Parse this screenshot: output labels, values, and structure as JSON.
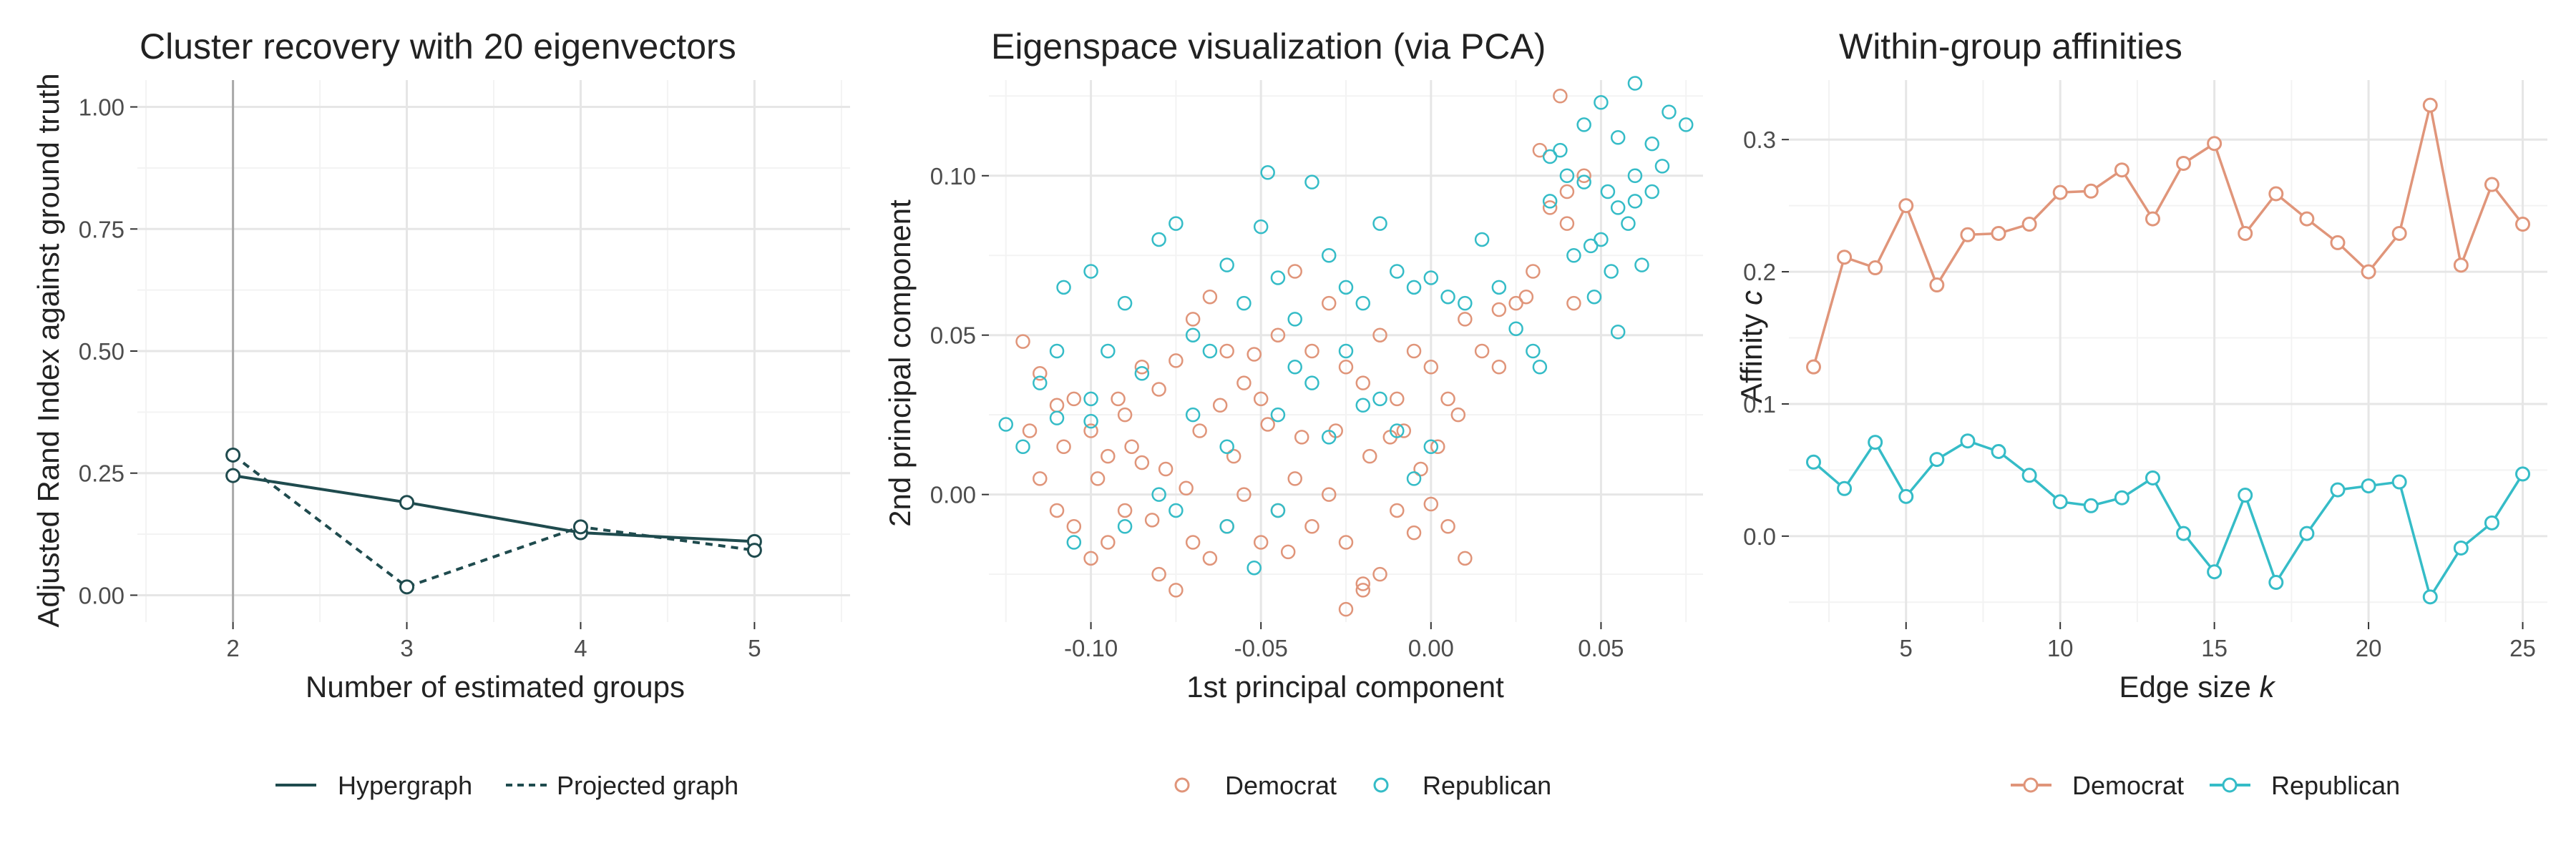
{
  "colors": {
    "dark": "#1f4b4e",
    "democrat": "#e0957a",
    "republican": "#35bcc7",
    "grid_major": "#e6e6e6",
    "grid_minor": "#f3f3f3",
    "text": "#222222",
    "tick_text": "#4d4d4d"
  },
  "chart_data": [
    {
      "type": "line",
      "title": "Cluster recovery with 20 eigenvectors",
      "xlabel": "Number of estimated groups",
      "ylabel": "Adjusted Rand Index against ground truth",
      "xlim": [
        1.45,
        5.55
      ],
      "ylim": [
        -0.055,
        1.055
      ],
      "x_ticks": [
        2,
        3,
        4,
        5
      ],
      "y_ticks": [
        0.0,
        0.25,
        0.5,
        0.75,
        1.0
      ],
      "y_tick_labels": [
        "0.00",
        "0.25",
        "0.50",
        "0.75",
        "1.00"
      ],
      "vline_x": 2,
      "grid": true,
      "legend_position": "bottom",
      "series": [
        {
          "name": "Hypergraph",
          "line": "solid",
          "x": [
            2,
            3,
            4,
            5
          ],
          "values": [
            0.245,
            0.19,
            0.128,
            0.11
          ]
        },
        {
          "name": "Projected graph",
          "line": "dashed",
          "x": [
            2,
            3,
            4,
            5
          ],
          "values": [
            0.287,
            0.017,
            0.14,
            0.092
          ]
        }
      ]
    },
    {
      "type": "scatter",
      "title": "Eigenspace visualization (via PCA)",
      "xlabel": "1st principal component",
      "ylabel": "2nd principal component",
      "xlim": [
        -0.13,
        0.08
      ],
      "ylim": [
        -0.04,
        0.13
      ],
      "x_ticks": [
        -0.1,
        -0.05,
        0.0,
        0.05
      ],
      "x_tick_labels": [
        "-0.10",
        "-0.05",
        "0.00",
        "0.05"
      ],
      "y_ticks": [
        0.0,
        0.05,
        0.1
      ],
      "y_tick_labels": [
        "0.00",
        "0.05",
        "0.10"
      ],
      "grid": true,
      "legend_position": "bottom",
      "series": [
        {
          "name": "Democrat",
          "points": [
            [
              -0.12,
              0.048
            ],
            [
              -0.115,
              0.038
            ],
            [
              -0.11,
              0.028
            ],
            [
              -0.105,
              0.03
            ],
            [
              -0.1,
              0.02
            ],
            [
              -0.095,
              0.012
            ],
            [
              -0.09,
              0.025
            ],
            [
              -0.085,
              0.04
            ],
            [
              -0.08,
              0.033
            ],
            [
              -0.075,
              0.042
            ],
            [
              -0.07,
              0.055
            ],
            [
              -0.065,
              0.062
            ],
            [
              -0.06,
              0.045
            ],
            [
              -0.055,
              0.035
            ],
            [
              -0.05,
              0.03
            ],
            [
              -0.045,
              0.05
            ],
            [
              -0.04,
              0.07
            ],
            [
              -0.035,
              0.045
            ],
            [
              -0.03,
              0.06
            ],
            [
              -0.025,
              0.04
            ],
            [
              -0.02,
              0.035
            ],
            [
              -0.015,
              0.05
            ],
            [
              -0.01,
              0.03
            ],
            [
              -0.005,
              0.045
            ],
            [
              0.0,
              0.04
            ],
            [
              0.005,
              0.03
            ],
            [
              0.01,
              0.055
            ],
            [
              0.015,
              0.045
            ],
            [
              0.02,
              0.04
            ],
            [
              0.025,
              0.06
            ],
            [
              0.03,
              0.07
            ],
            [
              0.035,
              0.09
            ],
            [
              0.04,
              0.095
            ],
            [
              0.045,
              0.1
            ],
            [
              0.04,
              0.085
            ],
            [
              0.038,
              0.125
            ],
            [
              0.032,
              0.108
            ],
            [
              0.042,
              0.06
            ],
            [
              0.028,
              0.062
            ],
            [
              0.02,
              0.058
            ],
            [
              -0.115,
              0.005
            ],
            [
              -0.11,
              -0.005
            ],
            [
              -0.105,
              -0.01
            ],
            [
              -0.1,
              -0.02
            ],
            [
              -0.095,
              -0.015
            ],
            [
              -0.09,
              -0.005
            ],
            [
              -0.085,
              0.01
            ],
            [
              -0.08,
              -0.025
            ],
            [
              -0.075,
              -0.03
            ],
            [
              -0.07,
              -0.015
            ],
            [
              -0.065,
              -0.02
            ],
            [
              -0.06,
              -0.01
            ],
            [
              -0.055,
              0.0
            ],
            [
              -0.05,
              -0.015
            ],
            [
              -0.045,
              -0.005
            ],
            [
              -0.04,
              0.005
            ],
            [
              -0.035,
              -0.01
            ],
            [
              -0.03,
              0.0
            ],
            [
              -0.025,
              -0.015
            ],
            [
              -0.02,
              -0.03
            ],
            [
              -0.015,
              -0.025
            ],
            [
              -0.01,
              -0.005
            ],
            [
              -0.005,
              -0.012
            ],
            [
              0.0,
              -0.003
            ],
            [
              0.005,
              -0.01
            ],
            [
              0.01,
              -0.02
            ],
            [
              -0.025,
              -0.036
            ],
            [
              -0.02,
              -0.028
            ],
            [
              -0.012,
              0.018
            ],
            [
              -0.003,
              0.008
            ],
            [
              -0.118,
              0.02
            ],
            [
              -0.108,
              0.015
            ],
            [
              -0.098,
              0.005
            ],
            [
              -0.088,
              0.015
            ],
            [
              -0.078,
              0.008
            ],
            [
              -0.068,
              0.02
            ],
            [
              -0.058,
              0.012
            ],
            [
              -0.048,
              0.022
            ],
            [
              -0.038,
              0.018
            ],
            [
              -0.028,
              0.02
            ],
            [
              -0.018,
              0.012
            ],
            [
              -0.008,
              0.02
            ],
            [
              0.002,
              0.015
            ],
            [
              0.008,
              0.025
            ],
            [
              -0.062,
              0.028
            ],
            [
              -0.052,
              0.044
            ],
            [
              -0.042,
              -0.018
            ],
            [
              -0.072,
              0.002
            ],
            [
              -0.082,
              -0.008
            ],
            [
              -0.092,
              0.03
            ]
          ]
        },
        {
          "name": "Republican",
          "points": [
            [
              -0.125,
              0.022
            ],
            [
              -0.12,
              0.015
            ],
            [
              -0.115,
              0.035
            ],
            [
              -0.11,
              0.045
            ],
            [
              -0.108,
              0.065
            ],
            [
              -0.1,
              0.07
            ],
            [
              -0.095,
              0.045
            ],
            [
              -0.09,
              0.06
            ],
            [
              -0.085,
              0.038
            ],
            [
              -0.08,
              0.08
            ],
            [
              -0.075,
              0.085
            ],
            [
              -0.07,
              0.05
            ],
            [
              -0.065,
              0.045
            ],
            [
              -0.06,
              0.072
            ],
            [
              -0.055,
              0.06
            ],
            [
              -0.05,
              0.084
            ],
            [
              -0.048,
              0.101
            ],
            [
              -0.045,
              0.068
            ],
            [
              -0.04,
              0.055
            ],
            [
              -0.035,
              0.098
            ],
            [
              -0.03,
              0.075
            ],
            [
              -0.025,
              0.065
            ],
            [
              -0.02,
              0.06
            ],
            [
              -0.015,
              0.085
            ],
            [
              -0.01,
              0.07
            ],
            [
              -0.005,
              0.065
            ],
            [
              0.0,
              0.068
            ],
            [
              0.005,
              0.062
            ],
            [
              0.01,
              0.06
            ],
            [
              0.015,
              0.08
            ],
            [
              0.02,
              0.065
            ],
            [
              0.025,
              0.052
            ],
            [
              0.03,
              0.045
            ],
            [
              0.032,
              0.04
            ],
            [
              0.035,
              0.106
            ],
            [
              0.04,
              0.1
            ],
            [
              0.045,
              0.098
            ],
            [
              0.05,
              0.08
            ],
            [
              0.055,
              0.09
            ],
            [
              0.06,
              0.1
            ],
            [
              0.065,
              0.11
            ],
            [
              0.07,
              0.12
            ],
            [
              0.075,
              0.116
            ],
            [
              0.06,
              0.129
            ],
            [
              0.05,
              0.123
            ],
            [
              0.055,
              0.112
            ],
            [
              0.045,
              0.116
            ],
            [
              0.038,
              0.108
            ],
            [
              0.052,
              0.095
            ],
            [
              0.058,
              0.085
            ],
            [
              0.062,
              0.072
            ],
            [
              0.048,
              0.062
            ],
            [
              0.055,
              0.051
            ],
            [
              0.042,
              0.075
            ],
            [
              0.035,
              0.092
            ],
            [
              0.06,
              0.092
            ],
            [
              0.065,
              0.095
            ],
            [
              0.047,
              0.078
            ],
            [
              0.053,
              0.07
            ],
            [
              0.068,
              0.103
            ],
            [
              -0.1,
              0.023
            ],
            [
              -0.09,
              -0.01
            ],
            [
              -0.08,
              0.0
            ],
            [
              -0.075,
              -0.005
            ],
            [
              -0.06,
              -0.01
            ],
            [
              -0.052,
              -0.023
            ],
            [
              -0.045,
              -0.005
            ],
            [
              -0.03,
              0.018
            ],
            [
              -0.02,
              0.028
            ],
            [
              -0.01,
              0.02
            ],
            [
              -0.005,
              0.005
            ],
            [
              0.0,
              0.015
            ],
            [
              -0.015,
              0.03
            ],
            [
              -0.025,
              0.045
            ],
            [
              -0.035,
              0.035
            ],
            [
              -0.04,
              0.04
            ],
            [
              -0.045,
              0.025
            ],
            [
              -0.06,
              0.015
            ],
            [
              -0.07,
              0.025
            ],
            [
              -0.105,
              -0.015
            ],
            [
              -0.1,
              0.03
            ],
            [
              -0.11,
              0.024
            ]
          ]
        }
      ]
    },
    {
      "type": "line",
      "title": "Within-group affinities",
      "xlabel": "Edge size k",
      "ylabel": "Affinity c",
      "xlim": [
        1.2,
        25.8
      ],
      "ylim": [
        -0.065,
        0.345
      ],
      "x_ticks": [
        5,
        10,
        15,
        20,
        25
      ],
      "y_ticks": [
        0.0,
        0.1,
        0.2,
        0.3
      ],
      "y_tick_labels": [
        "0.0",
        "0.1",
        "0.2",
        "0.3"
      ],
      "grid": true,
      "legend_position": "bottom",
      "series": [
        {
          "name": "Democrat",
          "x": [
            2,
            3,
            4,
            5,
            6,
            7,
            8,
            9,
            10,
            11,
            12,
            13,
            14,
            15,
            16,
            17,
            18,
            19,
            20,
            21,
            22,
            23,
            24,
            25
          ],
          "values": [
            0.128,
            0.211,
            0.203,
            0.25,
            0.19,
            0.228,
            0.229,
            0.236,
            0.26,
            0.261,
            0.277,
            0.24,
            0.282,
            0.297,
            0.229,
            0.259,
            0.24,
            0.222,
            0.2,
            0.229,
            0.326,
            0.205,
            0.266,
            0.236
          ]
        },
        {
          "name": "Republican",
          "x": [
            2,
            3,
            4,
            5,
            6,
            7,
            8,
            9,
            10,
            11,
            12,
            13,
            14,
            15,
            16,
            17,
            18,
            19,
            20,
            21,
            22,
            23,
            24,
            25
          ],
          "values": [
            0.056,
            0.036,
            0.071,
            0.03,
            0.058,
            0.072,
            0.064,
            0.046,
            0.026,
            0.023,
            0.029,
            0.044,
            0.002,
            -0.027,
            0.031,
            -0.035,
            0.002,
            0.035,
            0.038,
            0.041,
            -0.046,
            -0.009,
            0.01,
            0.047
          ]
        }
      ]
    }
  ]
}
